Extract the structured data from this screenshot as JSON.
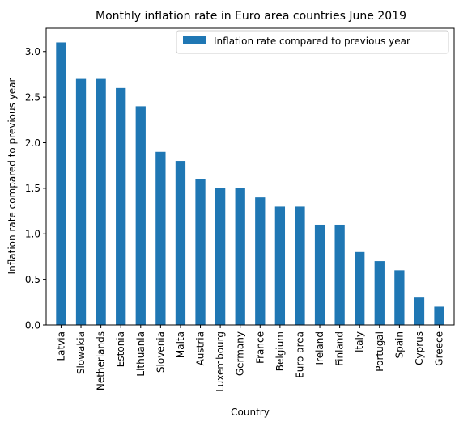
{
  "chart_data": {
    "type": "bar",
    "title": "Monthly inflation rate in Euro area countries June 2019",
    "xlabel": "Country",
    "ylabel": "Inflation rate compared to previous year",
    "ylim": [
      0,
      3.255
    ],
    "yticks": [
      "0.0",
      "0.5",
      "1.0",
      "1.5",
      "2.0",
      "2.5",
      "3.0"
    ],
    "grid": false,
    "legend_position": "top-right",
    "categories": [
      "Latvia",
      "Slowakia",
      "Netherlands",
      "Estonia",
      "Lithuania",
      "Slovenia",
      "Malta",
      "Austria",
      "Luxembourg",
      "Germany",
      "France",
      "Belgium",
      "Euro area",
      "Ireland",
      "Finland",
      "Italy",
      "Portugal",
      "Spain",
      "Cyprus",
      "Greece"
    ],
    "series": [
      {
        "name": "Inflation rate compared to previous year",
        "color": "#1f77b4",
        "values": [
          3.1,
          2.7,
          2.7,
          2.6,
          2.4,
          1.9,
          1.8,
          1.6,
          1.5,
          1.5,
          1.4,
          1.3,
          1.3,
          1.1,
          1.1,
          0.8,
          0.7,
          0.6,
          0.3,
          0.2
        ]
      }
    ]
  }
}
